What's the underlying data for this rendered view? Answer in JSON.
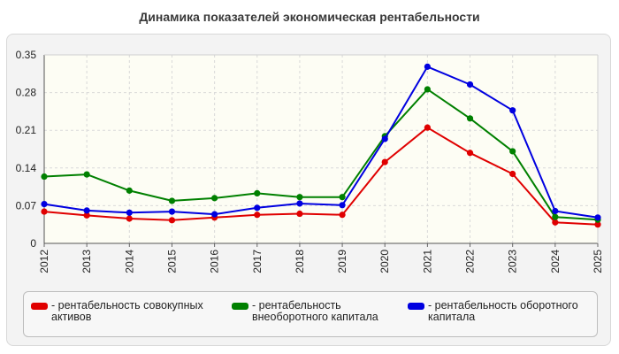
{
  "chart_data": {
    "type": "line",
    "title": "Динамика показателей экономическая рентабельности",
    "categories": [
      "2012",
      "2013",
      "2014",
      "2015",
      "2016",
      "2017",
      "2018",
      "2019",
      "2020",
      "2021",
      "2022",
      "2023",
      "2024",
      "2025"
    ],
    "ylim": [
      0,
      0.35
    ],
    "yticks": [
      0,
      0.07,
      0.14,
      0.21,
      0.28,
      0.35
    ],
    "ytick_labels": [
      "0",
      "0.07",
      "0.14",
      "0.21",
      "0.28",
      "0.35"
    ],
    "grid": true,
    "legend_position": "bottom",
    "series": [
      {
        "name": "рентабельность совокупных активов",
        "legend_label": "- рентабельность совокупных активов",
        "color": "#e00000",
        "values": [
          0.059,
          0.052,
          0.046,
          0.043,
          0.048,
          0.053,
          0.055,
          0.053,
          0.151,
          0.215,
          0.168,
          0.129,
          0.039,
          0.035
        ]
      },
      {
        "name": "рентабельность внеоборотного капитала",
        "legend_label": "- рентабельность внеоборотного капитала",
        "color": "#008000",
        "values": [
          0.124,
          0.128,
          0.098,
          0.079,
          0.084,
          0.093,
          0.086,
          0.086,
          0.199,
          0.286,
          0.232,
          0.171,
          0.049,
          0.044
        ]
      },
      {
        "name": "рентабельность оборотного капитала",
        "legend_label": "- рентабельность оборотного капитала",
        "color": "#0000e0",
        "values": [
          0.073,
          0.061,
          0.057,
          0.059,
          0.054,
          0.066,
          0.074,
          0.071,
          0.194,
          0.328,
          0.295,
          0.247,
          0.06,
          0.048
        ]
      }
    ]
  }
}
